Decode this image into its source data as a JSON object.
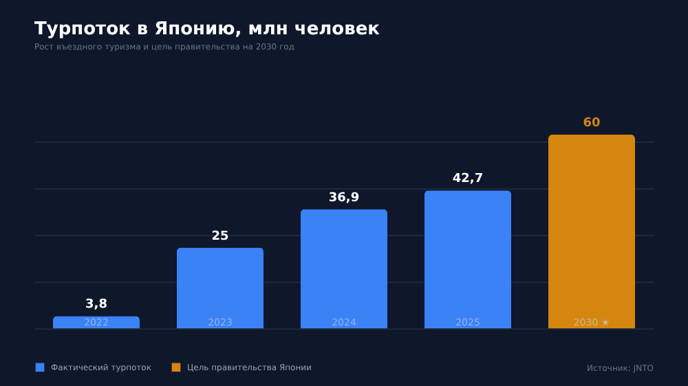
{
  "chart_data": {
    "type": "bar",
    "title": "Турпоток в Японию, млн человек",
    "subtitle": "Рост въездного туризма и цель правительства на 2030 год",
    "categories": [
      "2022",
      "2023",
      "2024",
      "2025",
      "2030 ★"
    ],
    "series": [
      {
        "name": "Фактический турпоток",
        "color": "#3b82f6",
        "values": [
          3.8,
          25,
          36.9,
          42.7,
          null
        ],
        "value_labels": [
          "3,8",
          "25",
          "36,9",
          "42,7",
          null
        ]
      },
      {
        "name": "Цель правительства Японии",
        "color": "#d4860f",
        "values": [
          null,
          null,
          null,
          null,
          60
        ],
        "value_labels": [
          null,
          null,
          null,
          null,
          "60"
        ]
      }
    ],
    "stacked": true,
    "yticks": [
      {
        "value": 14.5,
        "label": null
      },
      {
        "value": 29,
        "label": null
      },
      {
        "value": 43.5,
        "label": null
      },
      {
        "value": 58,
        "label": null
      }
    ],
    "grid": "y",
    "legend": "bottom left",
    "tick_labels": "x",
    "annotations": [
      "Источник: JNTO"
    ]
  }
}
